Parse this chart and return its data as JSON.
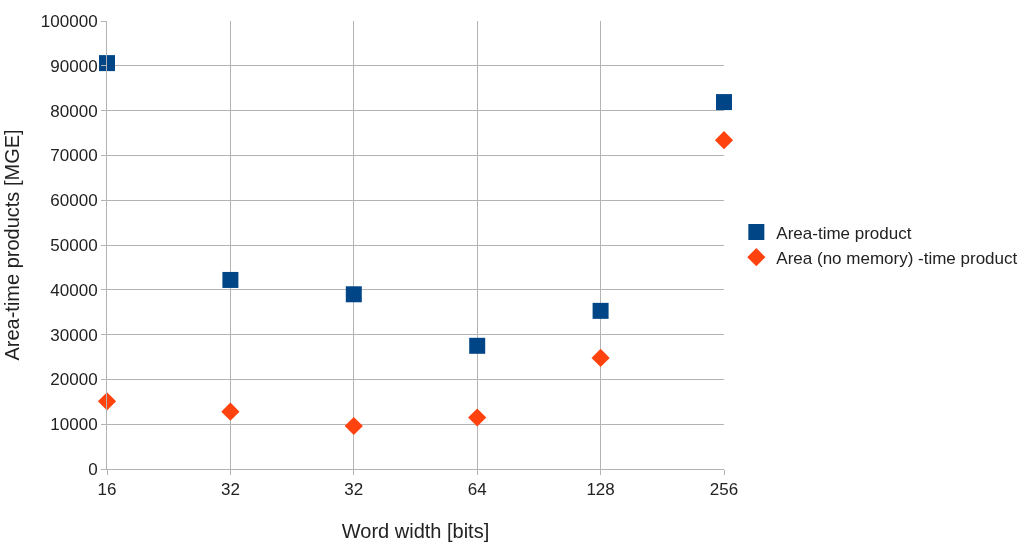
{
  "chart_data": {
    "type": "scatter",
    "xlabel": "Word width [bits]",
    "ylabel": "Area-time products [MGE]",
    "categories": [
      "16",
      "32",
      "32",
      "64",
      "128",
      "256"
    ],
    "series": [
      {
        "name": "Area-time product",
        "color": "#004586",
        "marker": "square",
        "values": [
          90600,
          42200,
          39000,
          27500,
          35300,
          81900
        ]
      },
      {
        "name": "Area (no memory) -time product",
        "color": "#ff420e",
        "marker": "diamond",
        "values": [
          15100,
          12800,
          9600,
          11500,
          24800,
          73400
        ]
      }
    ],
    "ylim": [
      0,
      100000
    ],
    "yticks": [
      0,
      10000,
      20000,
      30000,
      40000,
      50000,
      60000,
      70000,
      80000,
      90000,
      100000
    ],
    "grid": true,
    "legend": "right"
  }
}
